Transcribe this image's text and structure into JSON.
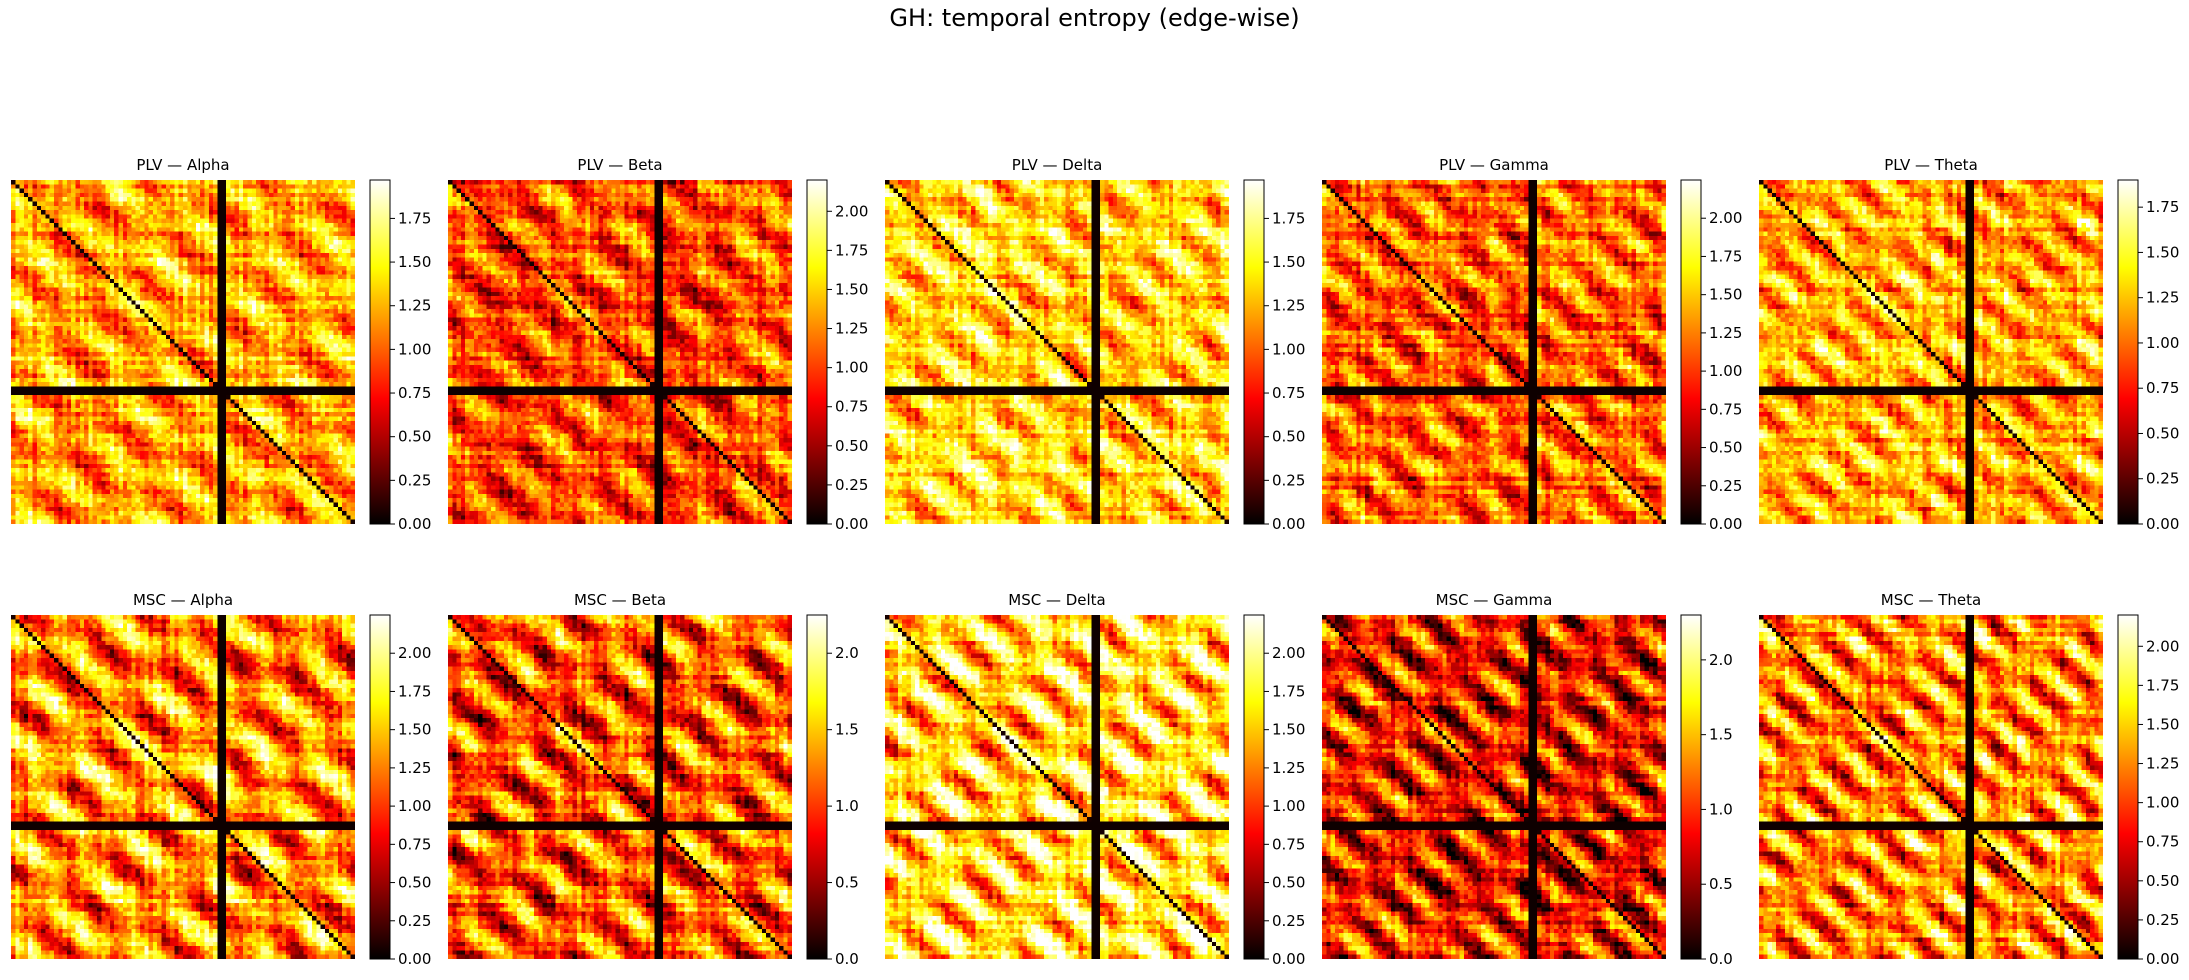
{
  "title": "GH: temporal entropy (edge-wise)",
  "colormap": "hot",
  "chart_data": [
    {
      "type": "heatmap",
      "title": "PLV — Alpha",
      "vmin": 0,
      "vmax": 1.97,
      "colorbar_ticks": [
        "0.00",
        "0.25",
        "0.50",
        "0.75",
        "1.00",
        "1.25",
        "1.50",
        "1.75"
      ]
    },
    {
      "type": "heatmap",
      "title": "PLV — Beta",
      "vmin": 0,
      "vmax": 2.2,
      "colorbar_ticks": [
        "0.00",
        "0.25",
        "0.50",
        "0.75",
        "1.00",
        "1.25",
        "1.50",
        "1.75",
        "2.00"
      ]
    },
    {
      "type": "heatmap",
      "title": "PLV — Delta",
      "vmin": 0,
      "vmax": 1.97,
      "colorbar_ticks": [
        "0.00",
        "0.25",
        "0.50",
        "0.75",
        "1.00",
        "1.25",
        "1.50",
        "1.75"
      ]
    },
    {
      "type": "heatmap",
      "title": "PLV — Gamma",
      "vmin": 0,
      "vmax": 2.25,
      "colorbar_ticks": [
        "0.00",
        "0.25",
        "0.50",
        "0.75",
        "1.00",
        "1.25",
        "1.50",
        "1.75",
        "2.00"
      ]
    },
    {
      "type": "heatmap",
      "title": "PLV — Theta",
      "vmin": 0,
      "vmax": 1.9,
      "colorbar_ticks": [
        "0.00",
        "0.25",
        "0.50",
        "0.75",
        "1.00",
        "1.25",
        "1.50",
        "1.75"
      ]
    },
    {
      "type": "heatmap",
      "title": "MSC — Alpha",
      "vmin": 0,
      "vmax": 2.25,
      "colorbar_ticks": [
        "0.00",
        "0.25",
        "0.50",
        "0.75",
        "1.00",
        "1.25",
        "1.50",
        "1.75",
        "2.00"
      ]
    },
    {
      "type": "heatmap",
      "title": "MSC — Beta",
      "vmin": 0,
      "vmax": 2.25,
      "colorbar_ticks": [
        "0.0",
        "0.5",
        "1.0",
        "1.5",
        "2.0"
      ]
    },
    {
      "type": "heatmap",
      "title": "MSC — Delta",
      "vmin": 0,
      "vmax": 2.25,
      "colorbar_ticks": [
        "0.00",
        "0.25",
        "0.50",
        "0.75",
        "1.00",
        "1.25",
        "1.50",
        "1.75",
        "2.00"
      ]
    },
    {
      "type": "heatmap",
      "title": "MSC — Gamma",
      "vmin": 0,
      "vmax": 2.3,
      "colorbar_ticks": [
        "0.0",
        "0.5",
        "1.0",
        "1.5",
        "2.0"
      ]
    },
    {
      "type": "heatmap",
      "title": "MSC — Theta",
      "vmin": 0,
      "vmax": 2.2,
      "colorbar_ticks": [
        "0.00",
        "0.25",
        "0.50",
        "0.75",
        "1.00",
        "1.25",
        "1.50",
        "1.75",
        "2.00"
      ]
    }
  ]
}
